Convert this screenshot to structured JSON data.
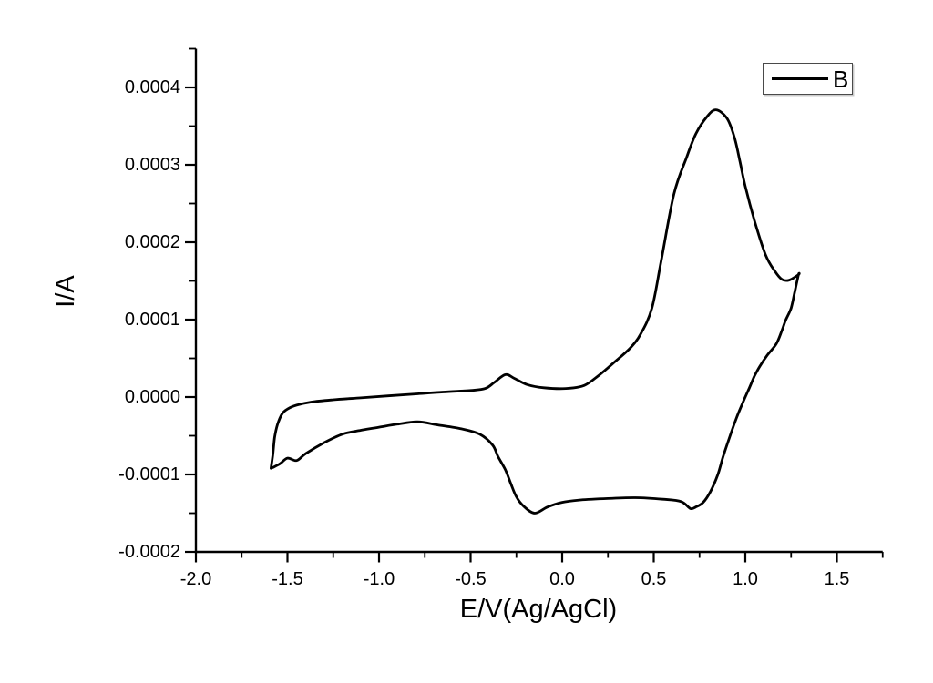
{
  "colors": {
    "curve": "#000000",
    "axes": "#000000",
    "text": "#000000",
    "background": "#ffffff",
    "legend_border": "#4a4a4a"
  },
  "chart_data": {
    "type": "line",
    "title": "",
    "xlabel": "E/V(Ag/AgCl)",
    "ylabel": "I/A",
    "xlim": [
      -2.0,
      1.75
    ],
    "ylim": [
      -0.0002,
      0.00045
    ],
    "grid": false,
    "x_major_ticks": [
      -2.0,
      -1.5,
      -1.0,
      -0.5,
      0.0,
      0.5,
      1.0,
      1.5
    ],
    "x_major_tick_labels": [
      "-2.0",
      "-1.5",
      "-1.0",
      "-0.5",
      "0.0",
      "0.5",
      "1.0",
      "1.5"
    ],
    "x_minor_ticks": [
      -1.75,
      -1.25,
      -0.75,
      -0.25,
      0.25,
      0.75,
      1.25,
      1.75
    ],
    "y_major_ticks": [
      0.0004,
      0.0003,
      0.0002,
      0.0001,
      0.0,
      -0.0001,
      -0.0002
    ],
    "y_major_tick_labels": [
      "0.0004",
      "0.0003",
      "0.0002",
      "0.0001",
      "0.0000",
      "-0.0001",
      "-0.0002"
    ],
    "y_minor_ticks": [
      0.00045,
      0.00035,
      0.00025,
      0.00015,
      5e-05,
      -5e-05,
      -0.00015
    ],
    "legend": {
      "position": "top-right",
      "entries": [
        {
          "label": "B",
          "color": "#000000"
        }
      ]
    },
    "series": [
      {
        "name": "B",
        "color": "#000000",
        "points": [
          [
            -1.59,
            -9.2e-05
          ],
          [
            -1.58,
            -7.5e-05
          ],
          [
            -1.57,
            -5.2e-05
          ],
          [
            -1.555,
            -3.6e-05
          ],
          [
            -1.53,
            -2.2e-05
          ],
          [
            -1.5,
            -1.55e-05
          ],
          [
            -1.45,
            -1.05e-05
          ],
          [
            -1.37,
            -6.5e-06
          ],
          [
            -1.25,
            -3.5e-06
          ],
          [
            -1.1,
            -1e-06
          ],
          [
            -0.95,
            1.5e-06
          ],
          [
            -0.8,
            4e-06
          ],
          [
            -0.65,
            6.5e-06
          ],
          [
            -0.5,
            8.5e-06
          ],
          [
            -0.42,
            1.1e-05
          ],
          [
            -0.37,
            1.9e-05
          ],
          [
            -0.31,
            2.9e-05
          ],
          [
            -0.26,
            2.4e-05
          ],
          [
            -0.19,
            1.6e-05
          ],
          [
            -0.1,
            1.2e-05
          ],
          [
            0.02,
            1.1e-05
          ],
          [
            0.12,
            1.5e-05
          ],
          [
            0.2,
            2.8e-05
          ],
          [
            0.28,
            4.4e-05
          ],
          [
            0.37,
            6.3e-05
          ],
          [
            0.43,
            8.2e-05
          ],
          [
            0.49,
            0.000115
          ],
          [
            0.54,
            0.000175
          ],
          [
            0.61,
            0.000262
          ],
          [
            0.68,
            0.00031
          ],
          [
            0.73,
            0.00034
          ],
          [
            0.79,
            0.000362
          ],
          [
            0.84,
            0.000371
          ],
          [
            0.9,
            0.00036
          ],
          [
            0.94,
            0.000336
          ],
          [
            0.97,
            0.000305
          ],
          [
            1.0,
            0.000272
          ],
          [
            1.05,
            0.000228
          ],
          [
            1.11,
            0.000184
          ],
          [
            1.16,
            0.000163
          ],
          [
            1.2,
            0.000152
          ],
          [
            1.24,
            0.000151
          ],
          [
            1.29,
            0.000158
          ],
          [
            1.29,
            0.000158
          ],
          [
            1.27,
            0.000136
          ],
          [
            1.25,
            0.000115
          ],
          [
            1.22,
            9.9e-05
          ],
          [
            1.2,
            8.6e-05
          ],
          [
            1.17,
            6.9e-05
          ],
          [
            1.12,
            5.4e-05
          ],
          [
            1.08,
            4e-05
          ],
          [
            1.05,
            2.7e-05
          ],
          [
            1.02,
            1.06e-05
          ],
          [
            0.985,
            -8e-06
          ],
          [
            0.95,
            -2.8e-05
          ],
          [
            0.92,
            -4.8e-05
          ],
          [
            0.88,
            -7.6e-05
          ],
          [
            0.85,
            -0.0001
          ],
          [
            0.81,
            -0.000122
          ],
          [
            0.77,
            -0.000136
          ],
          [
            0.73,
            -0.000142
          ],
          [
            0.7,
            -0.000144
          ],
          [
            0.65,
            -0.000135
          ],
          [
            0.55,
            -0.000132
          ],
          [
            0.4,
            -0.00013
          ],
          [
            0.25,
            -0.000131
          ],
          [
            0.1,
            -0.000133
          ],
          [
            0.0,
            -0.000136
          ],
          [
            -0.08,
            -0.000142
          ],
          [
            -0.15,
            -0.00015
          ],
          [
            -0.21,
            -0.000141
          ],
          [
            -0.25,
            -0.000129
          ],
          [
            -0.28,
            -0.000112
          ],
          [
            -0.31,
            -9.4e-05
          ],
          [
            -0.35,
            -7.7e-05
          ],
          [
            -0.38,
            -6.2e-05
          ],
          [
            -0.45,
            -4.8e-05
          ],
          [
            -0.55,
            -4.1e-05
          ],
          [
            -0.68,
            -3.6e-05
          ],
          [
            -0.79,
            -3.2e-05
          ],
          [
            -0.9,
            -3.5e-05
          ],
          [
            -1.0,
            -3.9e-05
          ],
          [
            -1.1,
            -4.3e-05
          ],
          [
            -1.2,
            -4.8e-05
          ],
          [
            -1.3,
            -5.9e-05
          ],
          [
            -1.4,
            -7.3e-05
          ],
          [
            -1.45,
            -8.2e-05
          ],
          [
            -1.5,
            -7.9e-05
          ],
          [
            -1.54,
            -8.6e-05
          ],
          [
            -1.58,
            -9.1e-05
          ],
          [
            -1.59,
            -9.2e-05
          ]
        ]
      }
    ]
  }
}
